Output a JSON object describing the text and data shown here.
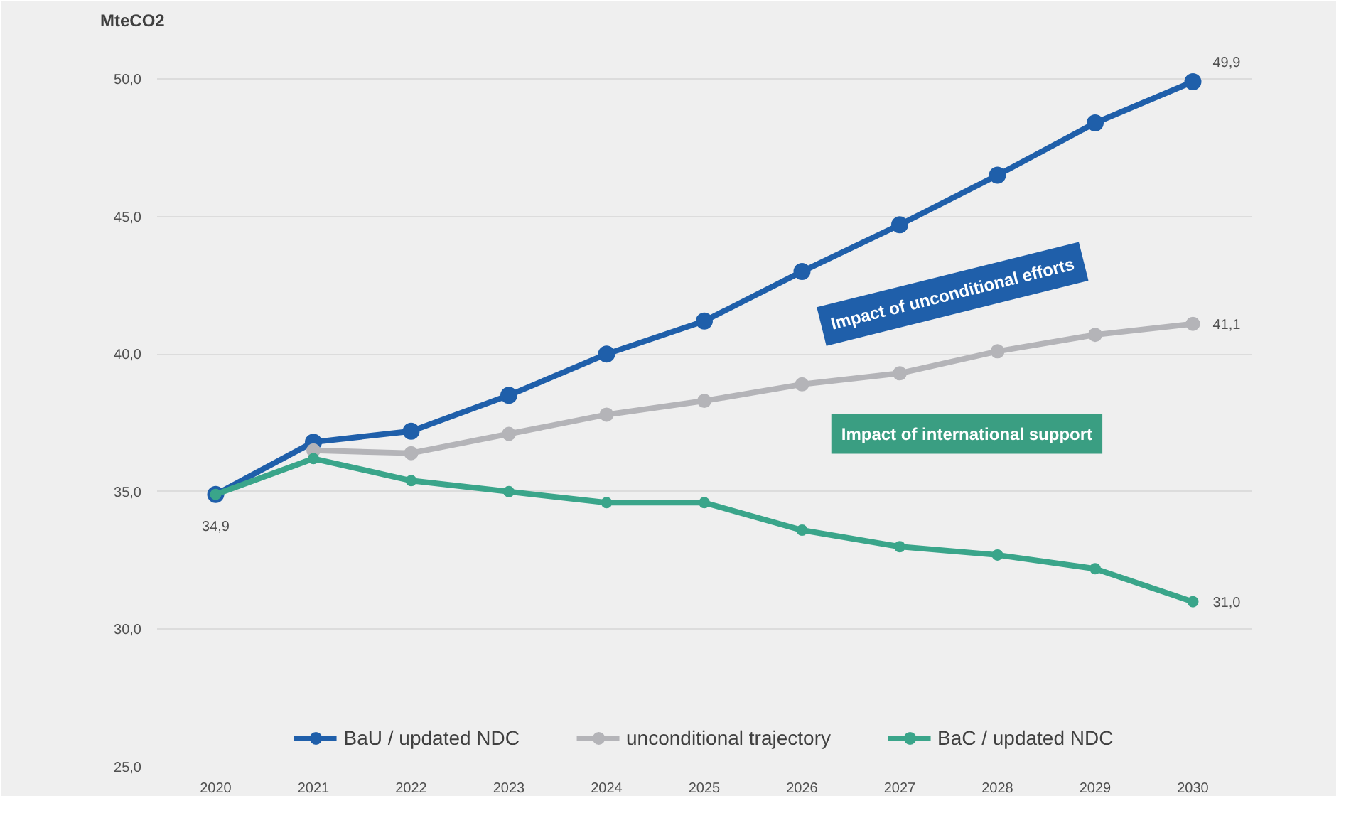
{
  "chart_data": {
    "type": "line",
    "ylabel": "MteCO2",
    "categories": [
      "2020",
      "2021",
      "2022",
      "2023",
      "2024",
      "2025",
      "2026",
      "2027",
      "2028",
      "2029",
      "2030"
    ],
    "series": [
      {
        "name": "BaU / updated NDC",
        "color": "#1f5faa",
        "values": [
          34.9,
          36.8,
          37.2,
          38.5,
          40.0,
          41.2,
          43.0,
          44.7,
          46.5,
          48.4,
          49.9
        ],
        "value_labels": [
          null,
          null,
          null,
          null,
          null,
          null,
          null,
          null,
          null,
          null,
          "49,9"
        ]
      },
      {
        "name": "unconditional trajectory",
        "color": "#b4b4b8",
        "values": [
          null,
          36.5,
          36.4,
          37.1,
          37.8,
          38.3,
          38.9,
          39.3,
          40.1,
          40.7,
          41.1
        ],
        "value_labels": [
          null,
          null,
          null,
          null,
          null,
          null,
          null,
          null,
          null,
          null,
          "41,1"
        ]
      },
      {
        "name": "BaC / updated NDC",
        "color": "#3aa58a",
        "values": [
          34.9,
          36.2,
          35.4,
          35.0,
          34.6,
          34.6,
          33.6,
          33.0,
          32.7,
          32.2,
          31.0
        ],
        "value_labels": [
          "34,9",
          null,
          null,
          null,
          null,
          null,
          null,
          null,
          null,
          null,
          "31,0"
        ]
      }
    ],
    "ylim": [
      25,
      51.5
    ],
    "yticks": [
      {
        "value": 25,
        "label": "25,0"
      },
      {
        "value": 30,
        "label": "30,0"
      },
      {
        "value": 35,
        "label": "35,0"
      },
      {
        "value": 40,
        "label": "40,0"
      },
      {
        "value": 45,
        "label": "45,0"
      },
      {
        "value": 50,
        "label": "50,0"
      }
    ],
    "annotations": [
      "Impact of unconditional efforts",
      "Impact of international support"
    ],
    "grid": "y",
    "legend": "bottom",
    "marker": "circle",
    "line_style": "solid"
  }
}
